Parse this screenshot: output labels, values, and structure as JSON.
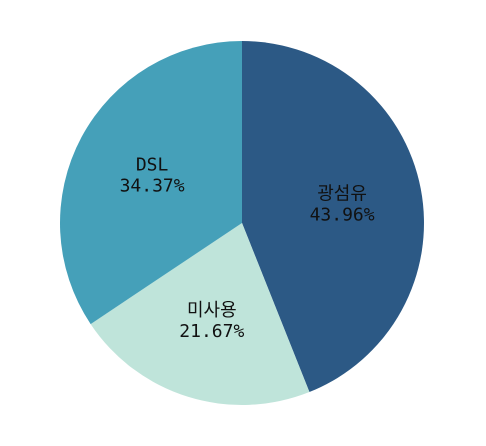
{
  "chart_data": {
    "type": "pie",
    "start_angle_deg": 0,
    "direction": "clockwise",
    "slices": [
      {
        "name": "광섬유",
        "value": 43.96,
        "label": "43.96%",
        "color": "#2c5985"
      },
      {
        "name": "미사용",
        "value": 21.67,
        "label": "21.67%",
        "color": "#bfe4da"
      },
      {
        "name": "DSL",
        "value": 34.37,
        "label": "34.37%",
        "color": "#45a0b9"
      }
    ]
  }
}
